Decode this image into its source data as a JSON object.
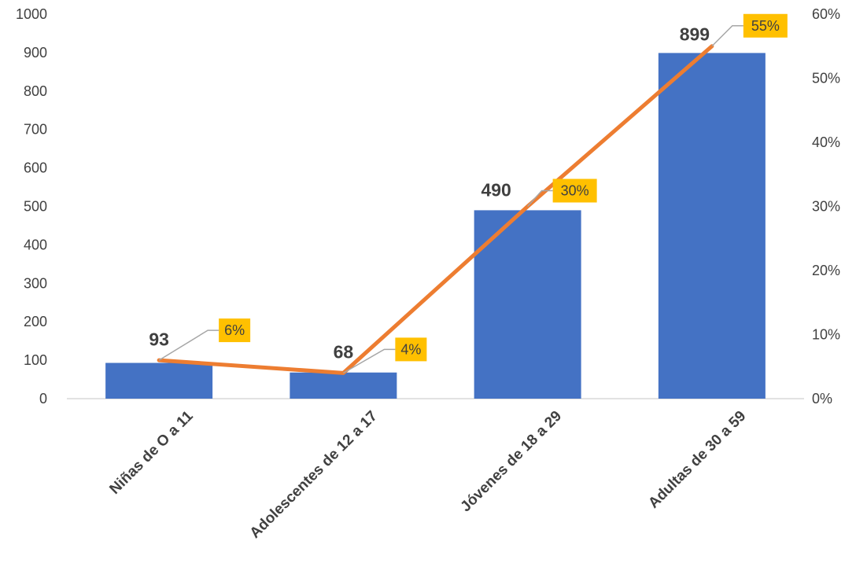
{
  "chart_data": {
    "type": "bar",
    "categories": [
      "Niñas de O a 11",
      "Adolescentes de 12 a 17",
      "Jóvenes de 18 a 29",
      "Adultas de 30 a 59"
    ],
    "series": [
      {
        "values": [
          93,
          68,
          490,
          899
        ],
        "axis": "left",
        "kind": "bar",
        "color": "#4472C4",
        "labels": [
          "93",
          "68",
          "490",
          "899"
        ]
      },
      {
        "values": [
          0.06,
          0.04,
          0.3,
          0.55
        ],
        "axis": "right",
        "kind": "line",
        "color": "#ED7D31",
        "labels": [
          "6%",
          "4%",
          "30%",
          "55%"
        ]
      }
    ],
    "y_left": {
      "min": 0,
      "max": 1000,
      "step": 100,
      "ticks": [
        "0",
        "100",
        "200",
        "300",
        "400",
        "500",
        "600",
        "700",
        "800",
        "900",
        "1000"
      ]
    },
    "y_right": {
      "min": 0,
      "max": 0.6,
      "step": 0.1,
      "ticks": [
        "0%",
        "10%",
        "20%",
        "30%",
        "40%",
        "50%",
        "60%"
      ]
    },
    "title": "",
    "xlabel": "",
    "ylabel": "",
    "grid": false,
    "legend": "none",
    "label_box_color": "#FFC000"
  }
}
